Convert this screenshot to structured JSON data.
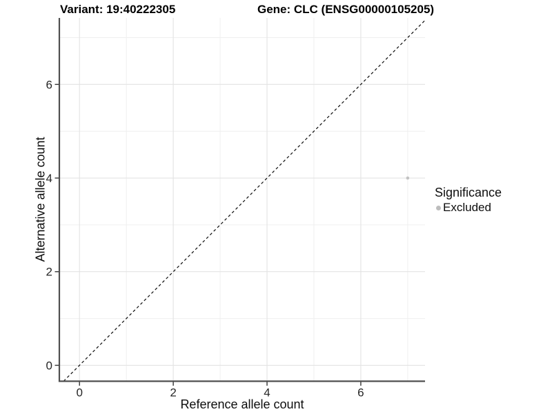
{
  "chart_data": {
    "type": "scatter",
    "title_left": "Variant: 19:40222305",
    "title_right": "Gene: CLC (ENSG00000105205)",
    "xlabel": "Reference allele count",
    "ylabel": "Alternative allele count",
    "xlim": [
      -0.43,
      7.37
    ],
    "ylim": [
      -0.34,
      7.42
    ],
    "xticks": [
      0,
      2,
      4,
      6
    ],
    "yticks": [
      0,
      2,
      4,
      6
    ],
    "minor_xticks": [
      1,
      3,
      5,
      7
    ],
    "minor_yticks": [
      1,
      3,
      5,
      7
    ],
    "grid": true,
    "identity_line": {
      "style": "dashed",
      "equation": "y = x",
      "color": "#0a0a0a"
    },
    "series": [
      {
        "name": "Excluded",
        "color": "#c2c2c2",
        "points": [
          {
            "x": 7,
            "y": 4
          }
        ]
      }
    ],
    "legend": {
      "position": "right",
      "title": "Significance",
      "items": [
        {
          "label": "Excluded",
          "color": "#bdbdbd"
        }
      ]
    },
    "colors": {
      "background": "#ffffff",
      "grid_major": "#e3e3e3",
      "grid_minor": "#efefef",
      "axis_line": "#4f4f4f",
      "tick_mark": "#333333",
      "tick_text": "#262626"
    }
  }
}
